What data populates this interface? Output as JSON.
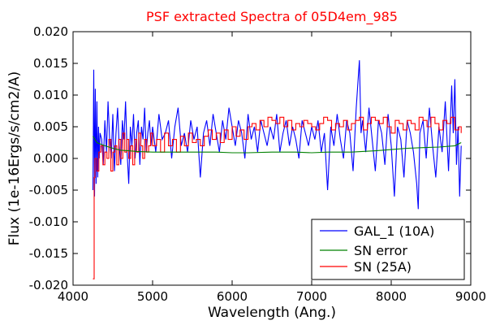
{
  "chart_data": {
    "type": "line",
    "title": "PSF extracted Spectra of 05D4em_985",
    "xlabel": "Wavelength (Ang.)",
    "ylabel": "Flux (1e-16Ergs/s/cm2/A)",
    "xlim": [
      4000,
      9000
    ],
    "ylim": [
      -0.02,
      0.02
    ],
    "x_ticks": [
      4000,
      5000,
      6000,
      7000,
      8000,
      9000
    ],
    "x_tick_labels": [
      "4000",
      "5000",
      "6000",
      "7000",
      "8000",
      "9000"
    ],
    "y_ticks": [
      -0.02,
      -0.015,
      -0.01,
      -0.005,
      0.0,
      0.005,
      0.01,
      0.015,
      0.02
    ],
    "y_tick_labels": [
      "-0.020",
      "-0.015",
      "-0.010",
      "-0.005",
      "0.000",
      "0.005",
      "0.010",
      "0.015",
      "0.020"
    ],
    "grid": false,
    "legend_position": "lower-right",
    "series": [
      {
        "name": "GAL_1 (10A)",
        "color": "#0000ff",
        "style": "line",
        "x": [
          4250,
          4260,
          4270,
          4280,
          4290,
          4300,
          4310,
          4320,
          4330,
          4340,
          4360,
          4380,
          4400,
          4420,
          4440,
          4460,
          4480,
          4500,
          4520,
          4540,
          4560,
          4580,
          4600,
          4620,
          4640,
          4660,
          4680,
          4700,
          4720,
          4740,
          4760,
          4780,
          4800,
          4820,
          4840,
          4860,
          4880,
          4900,
          4920,
          4940,
          4960,
          4980,
          5000,
          5040,
          5080,
          5120,
          5160,
          5200,
          5240,
          5280,
          5320,
          5360,
          5400,
          5440,
          5480,
          5520,
          5560,
          5600,
          5640,
          5680,
          5720,
          5760,
          5800,
          5840,
          5880,
          5920,
          5960,
          6000,
          6040,
          6080,
          6120,
          6160,
          6200,
          6240,
          6280,
          6320,
          6360,
          6400,
          6440,
          6480,
          6520,
          6560,
          6600,
          6640,
          6680,
          6720,
          6760,
          6800,
          6840,
          6880,
          6920,
          6960,
          7000,
          7040,
          7080,
          7120,
          7160,
          7200,
          7240,
          7280,
          7320,
          7360,
          7400,
          7440,
          7480,
          7520,
          7560,
          7600,
          7620,
          7640,
          7680,
          7720,
          7760,
          7800,
          7840,
          7880,
          7920,
          7960,
          8000,
          8040,
          8080,
          8120,
          8160,
          8200,
          8240,
          8280,
          8320,
          8340,
          8360,
          8400,
          8440,
          8480,
          8520,
          8560,
          8600,
          8640,
          8680,
          8720,
          8760,
          8780,
          8800,
          8820,
          8840,
          8860,
          8880
        ],
        "y": [
          -0.005,
          0.014,
          -0.006,
          0.011,
          -0.004,
          0.009,
          -0.003,
          0.005,
          0.0,
          0.004,
          0.003,
          -0.001,
          0.006,
          0.001,
          0.009,
          0.003,
          0.0,
          0.007,
          -0.002,
          0.004,
          0.008,
          0.002,
          -0.001,
          0.006,
          0.003,
          0.009,
          0.001,
          -0.004,
          0.005,
          0.002,
          0.007,
          0.0,
          0.004,
          0.006,
          -0.001,
          0.005,
          0.003,
          0.008,
          0.001,
          0.004,
          0.006,
          0.002,
          0.005,
          0.001,
          0.007,
          0.003,
          0.004,
          0.006,
          0.0,
          0.005,
          0.008,
          0.002,
          0.004,
          0.001,
          0.006,
          0.003,
          0.005,
          -0.003,
          0.004,
          0.006,
          0.002,
          0.007,
          0.004,
          0.001,
          0.006,
          0.003,
          0.008,
          0.005,
          0.002,
          0.006,
          0.004,
          0.0,
          0.007,
          0.003,
          0.005,
          0.001,
          0.006,
          0.004,
          0.002,
          0.005,
          0.003,
          0.007,
          0.001,
          0.004,
          0.006,
          0.002,
          0.005,
          0.003,
          0.0,
          0.006,
          0.004,
          0.002,
          0.005,
          0.003,
          0.006,
          0.001,
          0.004,
          -0.005,
          0.005,
          0.002,
          0.007,
          0.003,
          0.0,
          0.006,
          0.004,
          -0.002,
          0.008,
          0.0155,
          0.004,
          0.006,
          0.001,
          0.008,
          0.003,
          -0.002,
          0.006,
          0.004,
          -0.001,
          0.007,
          0.002,
          -0.006,
          0.005,
          0.003,
          -0.003,
          0.006,
          0.004,
          0.001,
          -0.004,
          -0.008,
          0.004,
          0.006,
          0.0,
          0.008,
          0.002,
          -0.003,
          0.005,
          0.001,
          0.009,
          -0.002,
          0.0115,
          0.004,
          0.0125,
          -0.001,
          0.005,
          -0.006,
          0.002
        ]
      },
      {
        "name": "SN error",
        "color": "#008000",
        "style": "line",
        "x": [
          4250,
          4300,
          4400,
          4500,
          4600,
          4700,
          4800,
          5000,
          5200,
          5500,
          5800,
          6000,
          6200,
          6500,
          6800,
          7000,
          7200,
          7500,
          7800,
          8000,
          8200,
          8400,
          8600,
          8800,
          8880
        ],
        "y": [
          0.0035,
          0.0025,
          0.002,
          0.0016,
          0.0013,
          0.0012,
          0.0011,
          0.001,
          0.001,
          0.001,
          0.001,
          0.0009,
          0.0009,
          0.001,
          0.001,
          0.0009,
          0.001,
          0.001,
          0.0012,
          0.0014,
          0.0016,
          0.0017,
          0.0018,
          0.002,
          0.0025
        ]
      },
      {
        "name": "SN (25A)",
        "color": "#ff0000",
        "style": "steps",
        "x": [
          4250,
          4265,
          4275,
          4300,
          4325,
          4350,
          4375,
          4400,
          4425,
          4450,
          4475,
          4500,
          4525,
          4550,
          4575,
          4600,
          4625,
          4650,
          4675,
          4700,
          4725,
          4750,
          4775,
          4800,
          4825,
          4850,
          4875,
          4900,
          4925,
          4950,
          4975,
          5000,
          5050,
          5100,
          5150,
          5200,
          5250,
          5300,
          5350,
          5400,
          5450,
          5500,
          5550,
          5600,
          5650,
          5700,
          5750,
          5800,
          5850,
          5900,
          5950,
          6000,
          6050,
          6100,
          6150,
          6200,
          6250,
          6300,
          6350,
          6400,
          6450,
          6500,
          6550,
          6600,
          6650,
          6700,
          6750,
          6800,
          6850,
          6900,
          6950,
          7000,
          7050,
          7100,
          7150,
          7200,
          7250,
          7300,
          7350,
          7400,
          7450,
          7500,
          7550,
          7600,
          7650,
          7700,
          7750,
          7800,
          7850,
          7900,
          7950,
          8000,
          8050,
          8100,
          8150,
          8200,
          8250,
          8300,
          8350,
          8400,
          8450,
          8500,
          8550,
          8600,
          8650,
          8700,
          8750,
          8800,
          8850,
          8880
        ],
        "y": [
          -0.019,
          -0.003,
          0.0,
          -0.002,
          0.001,
          0.002,
          -0.001,
          0.001,
          0.0,
          0.003,
          -0.002,
          0.001,
          0.002,
          -0.001,
          0.003,
          0.0,
          0.004,
          0.001,
          0.003,
          0.0,
          0.002,
          -0.001,
          0.003,
          0.001,
          0.004,
          0.002,
          0.0,
          0.003,
          0.001,
          0.002,
          0.004,
          0.002,
          0.003,
          0.001,
          0.004,
          0.002,
          0.003,
          0.001,
          0.0035,
          0.002,
          0.004,
          0.0025,
          0.003,
          0.002,
          0.0035,
          0.0045,
          0.003,
          0.004,
          0.0025,
          0.0045,
          0.003,
          0.005,
          0.0035,
          0.0045,
          0.003,
          0.005,
          0.0055,
          0.0045,
          0.006,
          0.005,
          0.0065,
          0.006,
          0.0055,
          0.0065,
          0.005,
          0.006,
          0.0045,
          0.0055,
          0.005,
          0.006,
          0.0055,
          0.005,
          0.0045,
          0.0055,
          0.0065,
          0.006,
          0.0045,
          0.0055,
          0.005,
          0.006,
          0.0045,
          0.0055,
          0.006,
          0.0065,
          0.0045,
          0.0055,
          0.0065,
          0.006,
          0.0055,
          0.0065,
          0.005,
          0.004,
          0.006,
          0.0055,
          0.0045,
          0.006,
          0.0055,
          0.0045,
          0.0065,
          0.006,
          0.005,
          0.0065,
          0.0055,
          0.0045,
          0.006,
          0.0055,
          0.0065,
          0.0045,
          0.005,
          0.004
        ]
      }
    ]
  }
}
